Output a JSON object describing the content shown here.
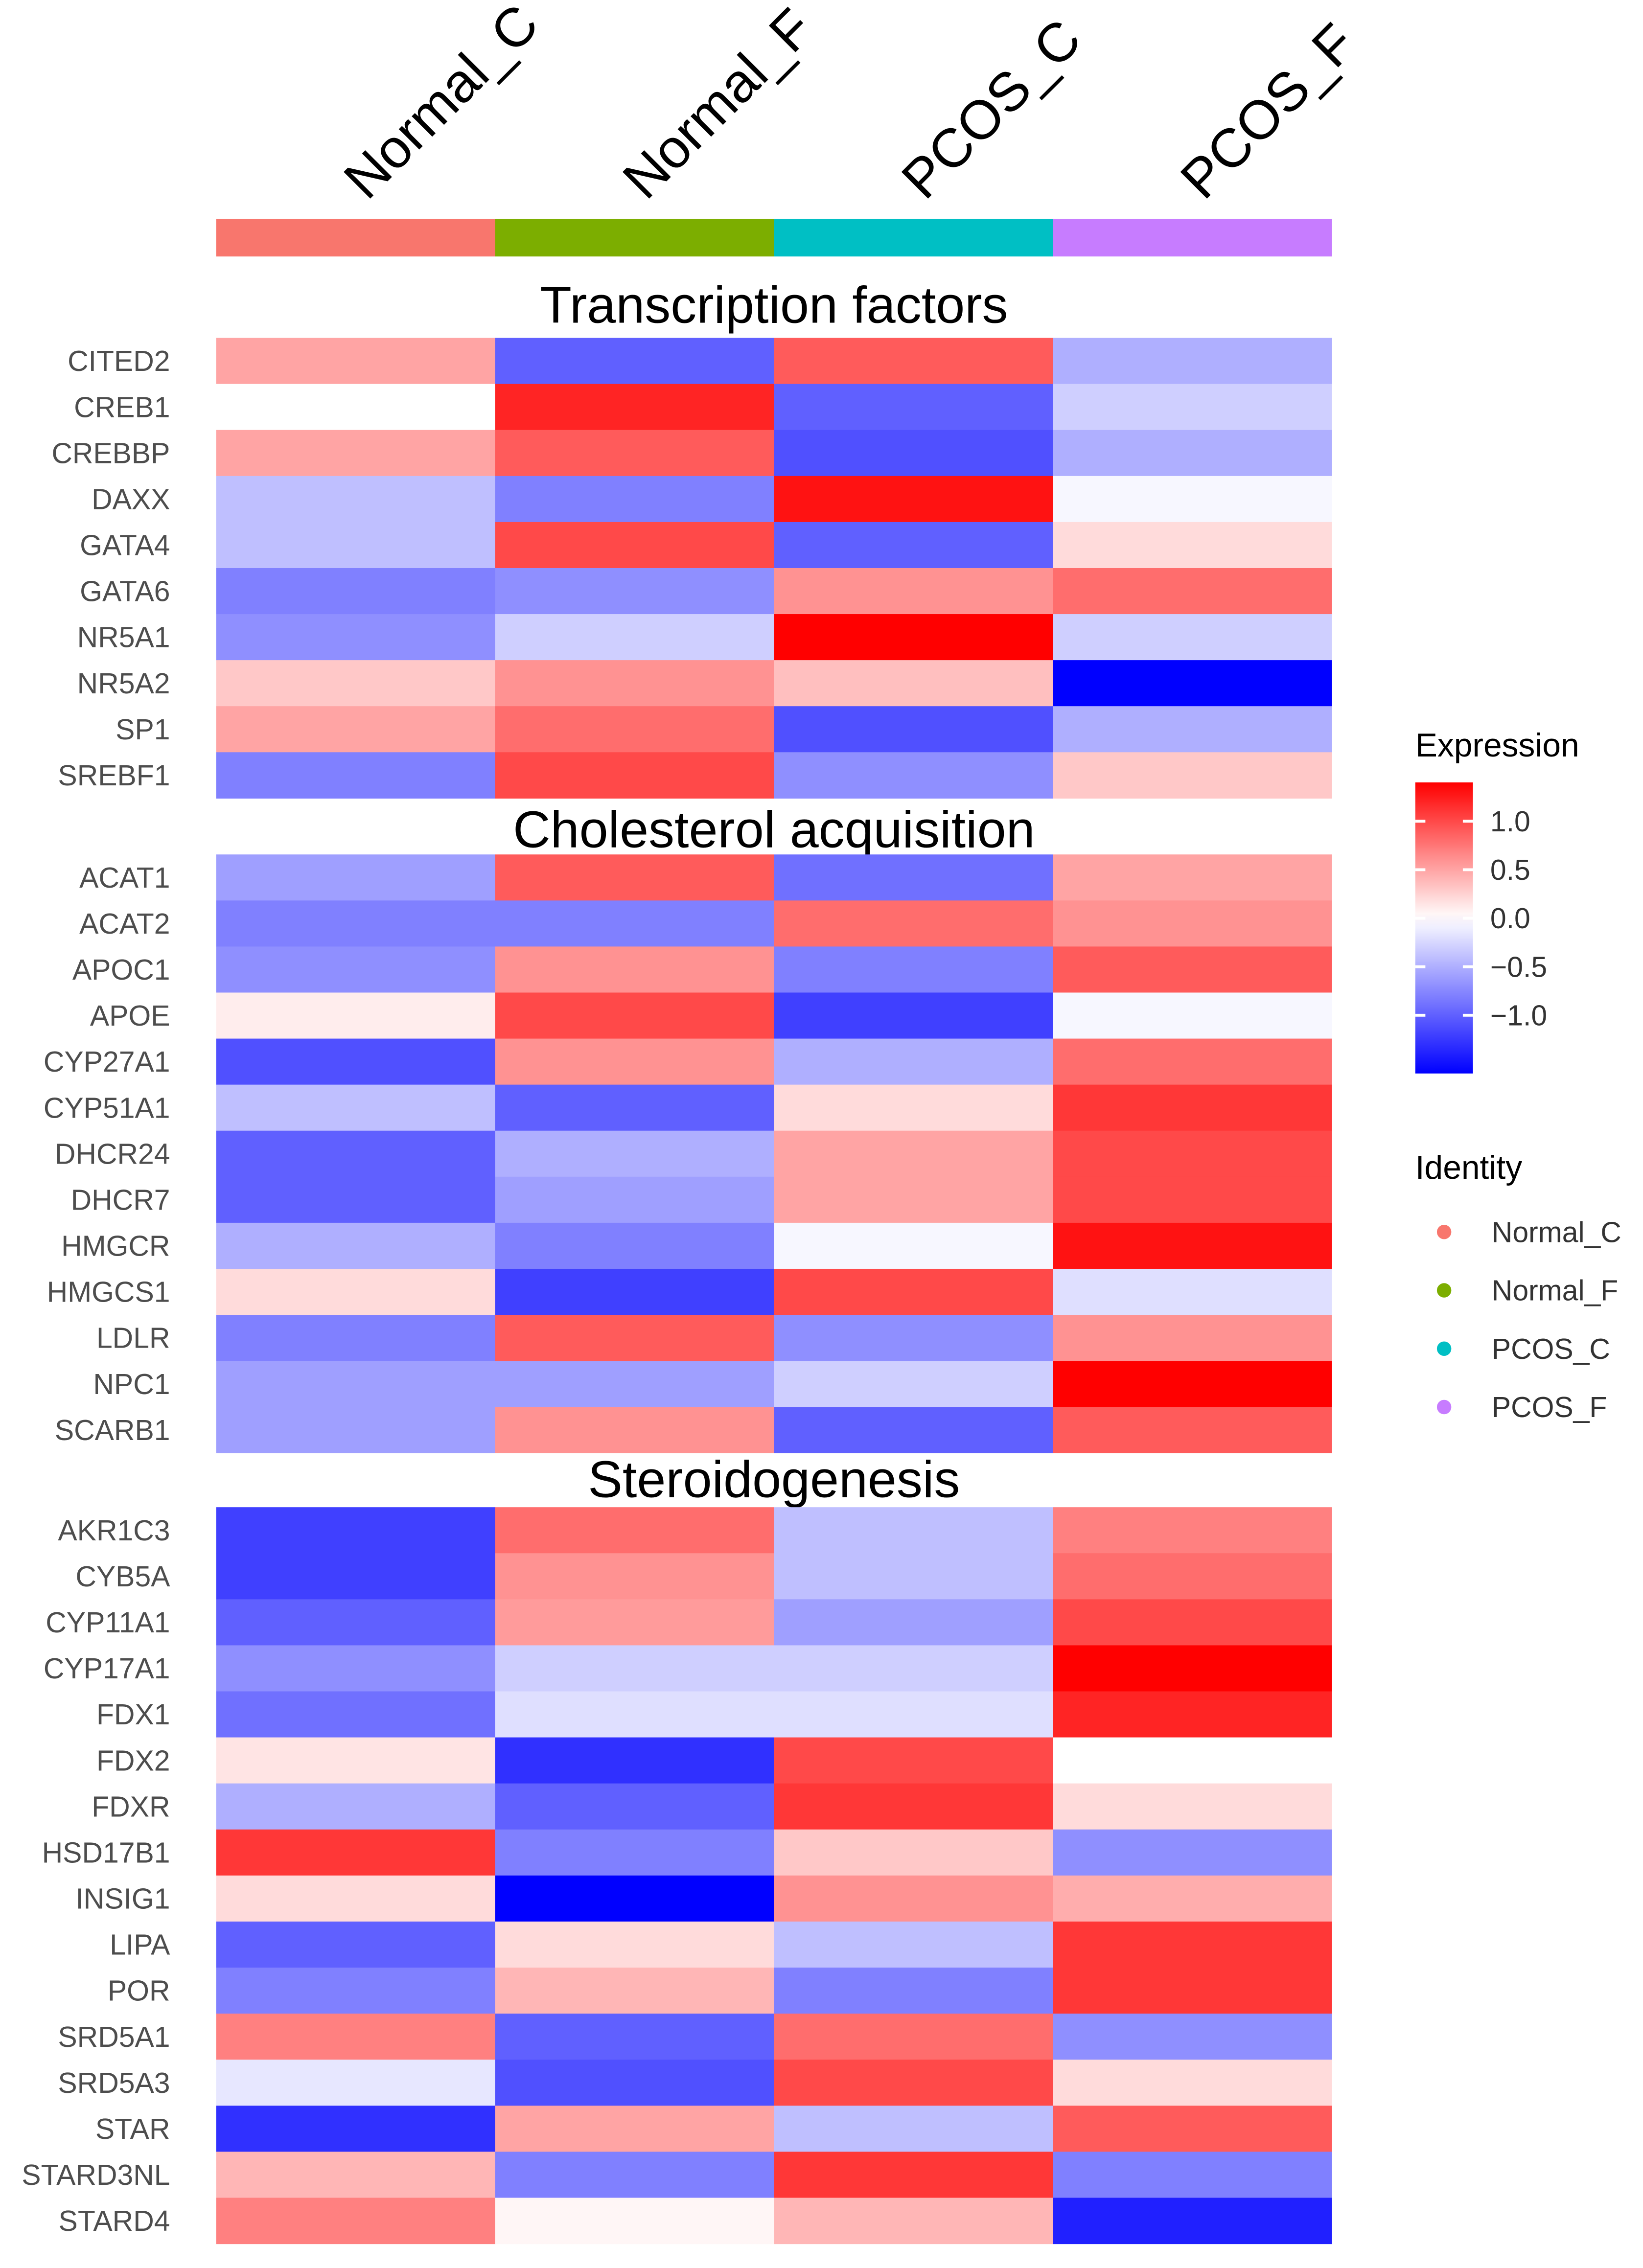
{
  "chart_data": {
    "type": "heatmap",
    "title": "",
    "columns": [
      "Normal_C",
      "Normal_F",
      "PCOS_C",
      "PCOS_F"
    ],
    "column_colors": [
      "#F8766D",
      "#7CAE00",
      "#00BFC4",
      "#C77CFF"
    ],
    "sections": [
      {
        "name": "Transcription factors",
        "rows": [
          {
            "gene": "CITED2",
            "values": [
              0.5,
              -1.0,
              0.9,
              -0.5
            ]
          },
          {
            "gene": "CREB1",
            "values": [
              0.0,
              1.2,
              -1.0,
              -0.3
            ]
          },
          {
            "gene": "CREBBP",
            "values": [
              0.5,
              0.9,
              -1.1,
              -0.5
            ]
          },
          {
            "gene": "DAXX",
            "values": [
              -0.4,
              -0.8,
              1.3,
              -0.05
            ]
          },
          {
            "gene": "GATA4",
            "values": [
              -0.4,
              1.0,
              -1.0,
              0.2
            ]
          },
          {
            "gene": "GATA6",
            "values": [
              -0.8,
              -0.7,
              0.6,
              0.8
            ]
          },
          {
            "gene": "NR5A1",
            "values": [
              -0.7,
              -0.3,
              1.4,
              -0.3
            ]
          },
          {
            "gene": "NR5A2",
            "values": [
              0.3,
              0.6,
              0.35,
              -1.6
            ]
          },
          {
            "gene": "SP1",
            "values": [
              0.5,
              0.8,
              -1.1,
              -0.5
            ]
          },
          {
            "gene": "SREBF1",
            "values": [
              -0.8,
              1.0,
              -0.7,
              0.3
            ]
          }
        ]
      },
      {
        "name": "Cholesterol acquisition",
        "rows": [
          {
            "gene": "ACAT1",
            "values": [
              -0.6,
              0.9,
              -0.9,
              0.5
            ]
          },
          {
            "gene": "ACAT2",
            "values": [
              -0.8,
              -0.8,
              0.8,
              0.6
            ]
          },
          {
            "gene": "APOC1",
            "values": [
              -0.7,
              0.6,
              -0.8,
              0.9
            ]
          },
          {
            "gene": "APOE",
            "values": [
              0.1,
              1.0,
              -1.2,
              -0.05
            ]
          },
          {
            "gene": "CYP27A1",
            "values": [
              -1.1,
              0.6,
              -0.5,
              0.8
            ]
          },
          {
            "gene": "CYP51A1",
            "values": [
              -0.4,
              -1.0,
              0.2,
              1.1
            ]
          },
          {
            "gene": "DHCR24",
            "values": [
              -1.0,
              -0.5,
              0.5,
              1.0
            ]
          },
          {
            "gene": "DHCR7",
            "values": [
              -1.0,
              -0.6,
              0.5,
              1.0
            ]
          },
          {
            "gene": "HMGCR",
            "values": [
              -0.5,
              -0.8,
              -0.05,
              1.3
            ]
          },
          {
            "gene": "HMGCS1",
            "values": [
              0.2,
              -1.2,
              1.0,
              -0.2
            ]
          },
          {
            "gene": "LDLR",
            "values": [
              -0.8,
              0.9,
              -0.7,
              0.6
            ]
          },
          {
            "gene": "NPC1",
            "values": [
              -0.6,
              -0.6,
              -0.3,
              1.4
            ]
          },
          {
            "gene": "SCARB1",
            "values": [
              -0.6,
              0.6,
              -1.0,
              0.9
            ]
          }
        ]
      },
      {
        "name": "Steroidogenesis",
        "rows": [
          {
            "gene": "AKR1C3",
            "values": [
              -1.2,
              0.8,
              -0.4,
              0.7
            ]
          },
          {
            "gene": "CYB5A",
            "values": [
              -1.2,
              0.6,
              -0.4,
              0.8
            ]
          },
          {
            "gene": "CYP11A1",
            "values": [
              -1.0,
              0.55,
              -0.6,
              1.0
            ]
          },
          {
            "gene": "CYP17A1",
            "values": [
              -0.7,
              -0.3,
              -0.3,
              1.4
            ]
          },
          {
            "gene": "FDX1",
            "values": [
              -0.9,
              -0.2,
              -0.2,
              1.2
            ]
          },
          {
            "gene": "FDX2",
            "values": [
              0.15,
              -1.3,
              1.0,
              0.0
            ]
          },
          {
            "gene": "FDXR",
            "values": [
              -0.5,
              -1.0,
              1.1,
              0.2
            ]
          },
          {
            "gene": "HSD17B1",
            "values": [
              1.1,
              -0.8,
              0.3,
              -0.7
            ]
          },
          {
            "gene": "INSIG1",
            "values": [
              0.2,
              -1.6,
              0.6,
              0.45
            ]
          },
          {
            "gene": "LIPA",
            "values": [
              -1.0,
              0.2,
              -0.4,
              1.1
            ]
          },
          {
            "gene": "POR",
            "values": [
              -0.8,
              0.4,
              -0.8,
              1.1
            ]
          },
          {
            "gene": "SRD5A1",
            "values": [
              0.7,
              -1.0,
              0.8,
              -0.7
            ]
          },
          {
            "gene": "SRD5A3",
            "values": [
              -0.15,
              -1.1,
              1.0,
              0.2
            ]
          },
          {
            "gene": "STAR",
            "values": [
              -1.3,
              0.5,
              -0.4,
              0.9
            ]
          },
          {
            "gene": "STARD3NL",
            "values": [
              0.4,
              -0.8,
              1.1,
              -0.8
            ]
          },
          {
            "gene": "STARD4",
            "values": [
              0.7,
              0.05,
              0.4,
              -1.4
            ]
          }
        ]
      }
    ],
    "color_scale": {
      "low": "#0000FF",
      "mid": "#FFFFFF",
      "high": "#FF0000",
      "range": [
        -1.6,
        1.4
      ]
    },
    "legend_expression": {
      "title": "Expression",
      "ticks": [
        1.0,
        0.5,
        0.0,
        -0.5,
        -1.0
      ],
      "tick_labels": [
        "1.0",
        "0.5",
        "0.0",
        "−0.5",
        "−1.0"
      ]
    },
    "legend_identity": {
      "title": "Identity",
      "items": [
        "Normal_C",
        "Normal_F",
        "PCOS_C",
        "PCOS_F"
      ]
    }
  }
}
